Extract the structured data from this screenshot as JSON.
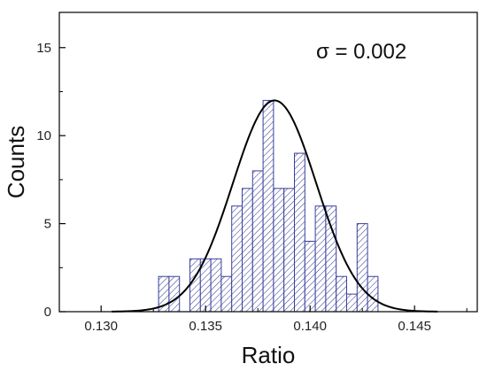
{
  "chart_data": {
    "type": "bar",
    "xlabel": "Ratio",
    "ylabel": "Counts",
    "xlim": [
      0.128,
      0.148
    ],
    "ylim": [
      0,
      17
    ],
    "x_ticks": [
      "0.130",
      "0.135",
      "0.140",
      "0.145"
    ],
    "x_tick_values": [
      0.13,
      0.135,
      0.14,
      0.145
    ],
    "y_ticks": [
      "0",
      "5",
      "10",
      "15"
    ],
    "y_tick_values": [
      0,
      5,
      10,
      15
    ],
    "bin_width": 0.0005,
    "bins": [
      {
        "x": 0.133,
        "count": 2
      },
      {
        "x": 0.1335,
        "count": 2
      },
      {
        "x": 0.1345,
        "count": 3
      },
      {
        "x": 0.135,
        "count": 3
      },
      {
        "x": 0.1355,
        "count": 3
      },
      {
        "x": 0.136,
        "count": 2
      },
      {
        "x": 0.1365,
        "count": 6
      },
      {
        "x": 0.137,
        "count": 7
      },
      {
        "x": 0.1375,
        "count": 8
      },
      {
        "x": 0.138,
        "count": 12
      },
      {
        "x": 0.1385,
        "count": 7
      },
      {
        "x": 0.139,
        "count": 7
      },
      {
        "x": 0.1395,
        "count": 9
      },
      {
        "x": 0.14,
        "count": 4
      },
      {
        "x": 0.1405,
        "count": 6
      },
      {
        "x": 0.141,
        "count": 6
      },
      {
        "x": 0.1415,
        "count": 2
      },
      {
        "x": 0.142,
        "count": 1
      },
      {
        "x": 0.1425,
        "count": 5
      },
      {
        "x": 0.143,
        "count": 2
      }
    ],
    "gaussian_fit": {
      "mean": 0.1383,
      "sigma": 0.002,
      "peak": 12,
      "x_range": [
        0.1305,
        0.1461
      ]
    },
    "annotation": "σ = 0.002",
    "colors": {
      "bar_hatch": "#3a3f9a",
      "fit_line": "#000000",
      "axis": "#000000"
    }
  }
}
